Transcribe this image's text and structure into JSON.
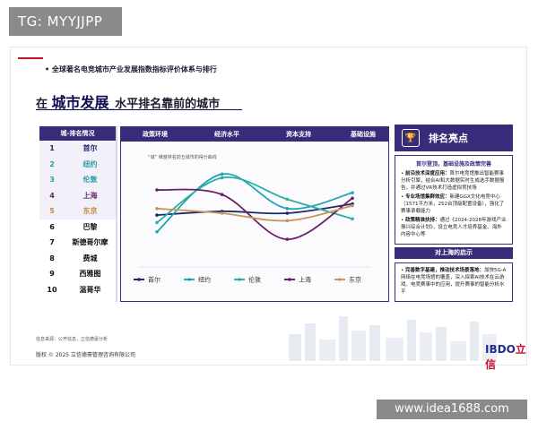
{
  "badge": {
    "tg": "TG: MYYJJPP"
  },
  "slide": {
    "top_title": "全球著名电竞城市产业发展指数指标评价体系与排行",
    "title_prefix": "在",
    "title_highlight": "城市发展",
    "title_suffix": "水平排名靠前的城市"
  },
  "rank": {
    "header": "城-排名情况",
    "items": [
      {
        "num": "1",
        "city": "首尔",
        "color": "#1f2a6e"
      },
      {
        "num": "2",
        "city": "纽约",
        "color": "#2a9aa8"
      },
      {
        "num": "3",
        "city": "伦敦",
        "color": "#2a9aa8"
      },
      {
        "num": "4",
        "city": "上海",
        "color": "#6a1f6a"
      },
      {
        "num": "5",
        "city": "东京",
        "color": "#c08a4a"
      },
      {
        "num": "6",
        "city": "巴黎",
        "color": "#111111"
      },
      {
        "num": "7",
        "city": "斯德哥尔摩",
        "color": "#111111"
      },
      {
        "num": "8",
        "city": "费城",
        "color": "#111111"
      },
      {
        "num": "9",
        "city": "西雅图",
        "color": "#111111"
      },
      {
        "num": "10",
        "city": "温哥华",
        "color": "#111111"
      }
    ]
  },
  "chart_head": [
    "政策环境",
    "经济水平",
    "资本支持",
    "基础设施"
  ],
  "chart_data": {
    "type": "line",
    "title": "“城” 维度排名前五城市的得分曲线",
    "categories": [
      "政策环境",
      "经济水平",
      "资本支持",
      "基础设施"
    ],
    "ylim": [
      0,
      100
    ],
    "series": [
      {
        "name": "首尔",
        "color": "#1f2a6e",
        "values": [
          48,
          52,
          50,
          60
        ]
      },
      {
        "name": "纽约",
        "color": "#1fa6b8",
        "values": [
          30,
          92,
          55,
          72
        ]
      },
      {
        "name": "伦敦",
        "color": "#2ab0a0",
        "values": [
          40,
          88,
          65,
          44
        ]
      },
      {
        "name": "上海",
        "color": "#6a1f6a",
        "values": [
          75,
          70,
          22,
          66
        ]
      },
      {
        "name": "东京",
        "color": "#c8955a",
        "values": [
          55,
          50,
          42,
          58
        ]
      }
    ]
  },
  "right_panel": {
    "header": "排名亮点",
    "icon": "trophy-icon",
    "sub1": "首尔登顶，基础设施及政策完善",
    "points": [
      {
        "b": "前沿技术深度应用：",
        "t": "首尔电竞馆推出智能赛事分析引擎，结合AI和大数据实时生成选手数据报告，并通过VR技术打造虚拟竞技场"
      },
      {
        "b": "专业场馆集群效应：",
        "t": "新建GGX文化电竞中心（1571平方米，252台顶级配置设备），强化了赛事承载能力"
      },
      {
        "b": "政策精准扶持：",
        "t": "通过《2024-2028年游戏产业振兴综合计划》，设立电竞人才培养基金、海外内容中心等"
      }
    ],
    "band": "对上海的启示",
    "inspire": {
      "b": "完善数字基建，推动技术场景落地：",
      "t": "加快5G-A网络在电竞场馆的覆盖，深入探索AI技术在云游戏、电竞赛事中的应用，提升赛事的智能分析水平"
    }
  },
  "footer": {
    "source": "信息来源：公开信息，立信德豪分析",
    "copyright": "版权 © 2025 立信德豪管理咨询有限公司",
    "logo_main": "IBDO",
    "logo_cn": "立信"
  },
  "watermark": "www.idea1688.com"
}
